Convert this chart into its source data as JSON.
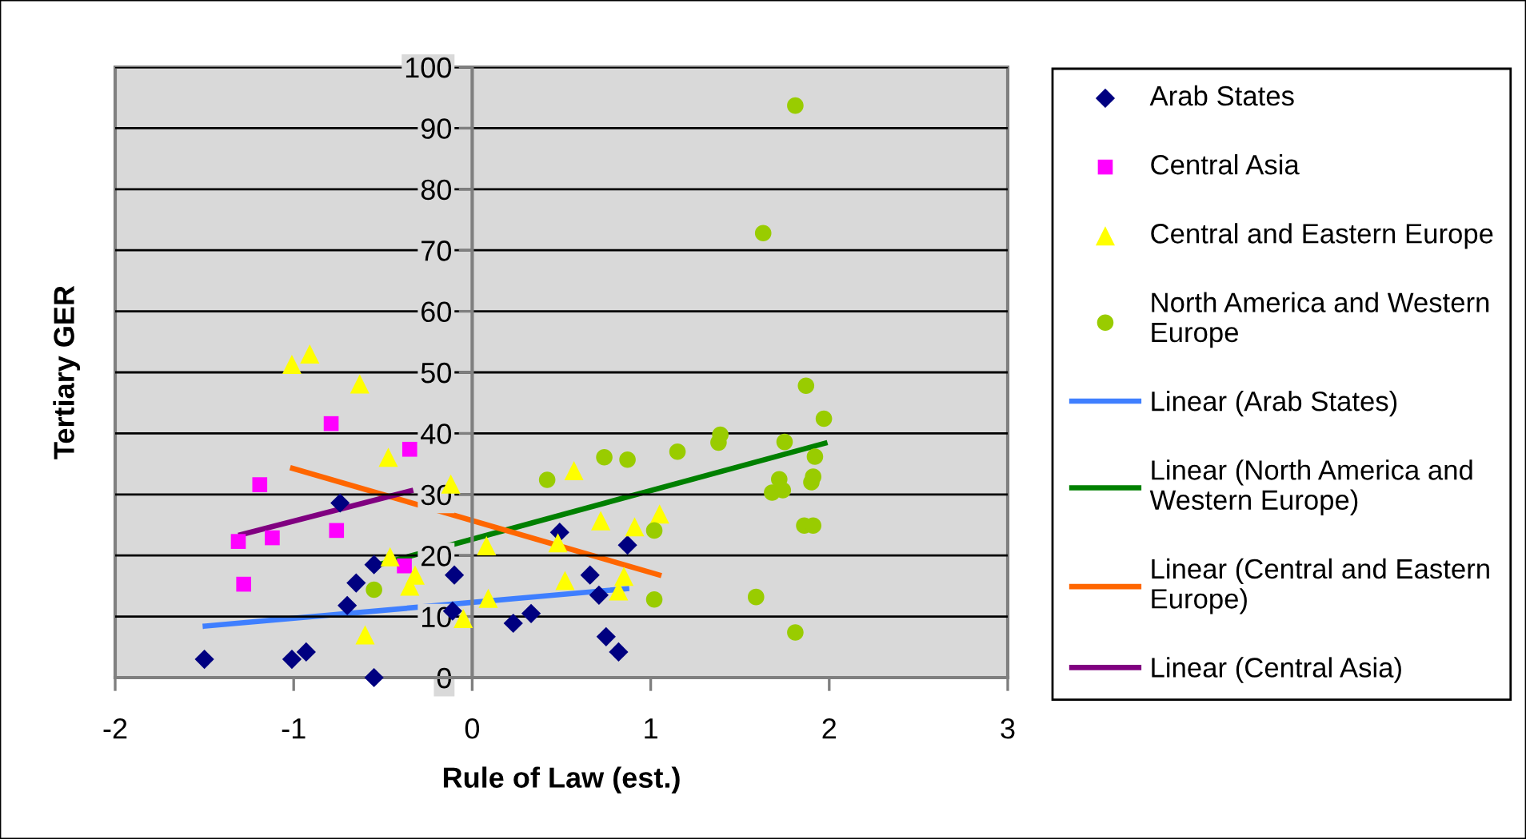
{
  "chart_data": {
    "type": "scatter",
    "xlabel": "Rule of Law (est.)",
    "ylabel": "Tertiary GER",
    "xlim": [
      -2,
      3
    ],
    "xticks": [
      -2,
      -1,
      0,
      1,
      2,
      3
    ],
    "ylim": [
      0,
      100
    ],
    "yticks": [
      0,
      10,
      20,
      30,
      40,
      50,
      60,
      70,
      80,
      90,
      100
    ],
    "grid": "y",
    "legend": "right",
    "series": [
      {
        "name": "Arab States",
        "type": "scatter",
        "marker": "diamond",
        "color": "#000080",
        "x": [
          -1.5,
          -1.01,
          -0.93,
          -0.74,
          -0.65,
          -0.7,
          -0.55,
          -0.55,
          -0.1,
          -0.11,
          0.23,
          0.33,
          0.49,
          0.66,
          0.71,
          0.75,
          0.82,
          0.87
        ],
        "values": [
          3.0,
          3.0,
          4.2,
          28.6,
          15.5,
          11.8,
          18.5,
          0,
          16.8,
          10.9,
          8.9,
          10.5,
          23.8,
          16.8,
          13.5,
          6.7,
          4.2,
          21.7
        ]
      },
      {
        "name": "Central Asia",
        "type": "scatter",
        "marker": "square",
        "color": "#ff00ff",
        "x": [
          -1.31,
          -1.28,
          -1.19,
          -1.12,
          -0.79,
          -0.76,
          -0.35,
          -0.38
        ],
        "values": [
          22.3,
          15.3,
          31.6,
          22.9,
          41.6,
          24.1,
          37.4,
          18.3
        ]
      },
      {
        "name": "Central and Eastern Europe",
        "type": "scatter",
        "marker": "triangle",
        "color": "#ffff00",
        "x": [
          -1.01,
          -0.91,
          -0.63,
          -0.47,
          -0.12,
          -0.46,
          -0.32,
          -0.35,
          -0.6,
          -0.05,
          0.08,
          0.09,
          0.57,
          0.48,
          0.52,
          0.72,
          0.91,
          1.05,
          0.85,
          0.82
        ],
        "values": [
          51.3,
          53.0,
          48.1,
          36.1,
          31.7,
          19.8,
          16.8,
          15.0,
          7.0,
          9.7,
          21.6,
          13.0,
          33.9,
          22.1,
          15.9,
          25.7,
          24.7,
          26.8,
          16.6,
          14.2
        ]
      },
      {
        "name": "North America and Western\nEurope",
        "type": "scatter",
        "marker": "circle",
        "color": "#99cc00",
        "x": [
          -0.55,
          0.42,
          0.74,
          0.87,
          1.02,
          1.02,
          1.15,
          1.38,
          1.39,
          1.59,
          1.68,
          1.72,
          1.74,
          1.75,
          1.81,
          1.87,
          1.86,
          1.91,
          1.9,
          1.91,
          1.92,
          1.97,
          1.81,
          1.63
        ],
        "values": [
          14.4,
          32.4,
          36.1,
          35.7,
          24.1,
          12.8,
          37.0,
          38.5,
          39.8,
          13.2,
          30.3,
          32.5,
          30.7,
          38.6,
          7.4,
          47.8,
          24.9,
          24.9,
          32.0,
          32.9,
          36.2,
          42.4,
          93.7,
          72.8
        ]
      },
      {
        "name": "Linear (Arab States)",
        "type": "line",
        "line_style": "solid",
        "color": "#3f7fff",
        "x": [
          -1.51,
          0.88
        ],
        "values": [
          8.4,
          14.6
        ]
      },
      {
        "name": "Linear (North America and\nWestern Europe)",
        "type": "line",
        "line_style": "solid",
        "color": "#008000",
        "x": [
          -0.55,
          1.99
        ],
        "values": [
          18.3,
          38.5
        ]
      },
      {
        "name": "Linear (Central and Eastern\nEurope)",
        "type": "line",
        "line_style": "solid",
        "color": "#ff6600",
        "x": [
          -1.02,
          1.06
        ],
        "values": [
          34.4,
          16.7
        ]
      },
      {
        "name": "Linear (Central Asia)",
        "type": "line",
        "line_style": "solid",
        "color": "#800080",
        "x": [
          -1.31,
          -0.33
        ],
        "values": [
          23.3,
          30.7
        ]
      }
    ]
  }
}
